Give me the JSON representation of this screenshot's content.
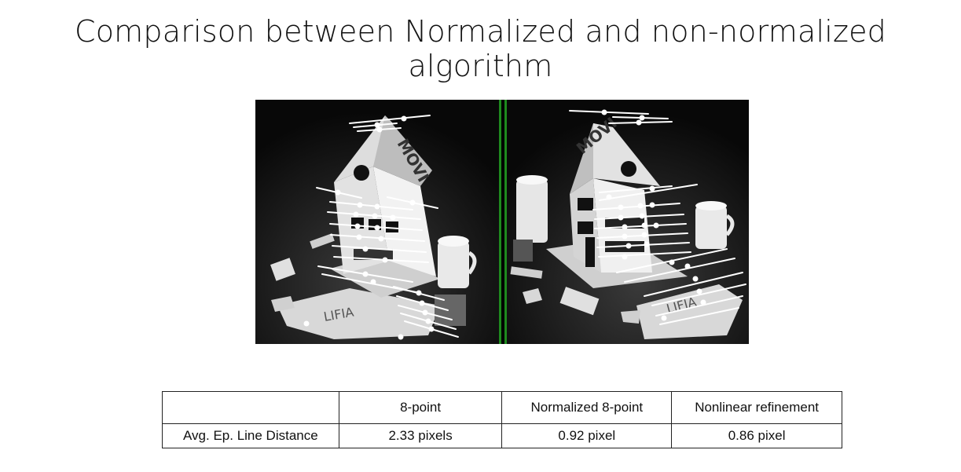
{
  "title": "Comparison between Normalized and non-normalized algorithm",
  "figure": {
    "left_image_text": "MOVI",
    "right_image_text": "MOVI",
    "left_mat_text": "LIFIA",
    "right_mat_text": "LIFIA",
    "divider_color": "#1e8a1e"
  },
  "table": {
    "headers": [
      "",
      "8-point",
      "Normalized 8-point",
      "Nonlinear refinement"
    ],
    "rows": [
      [
        "Avg. Ep. Line Distance",
        "2.33 pixels",
        "0.92 pixel",
        "0.86 pixel"
      ]
    ]
  }
}
